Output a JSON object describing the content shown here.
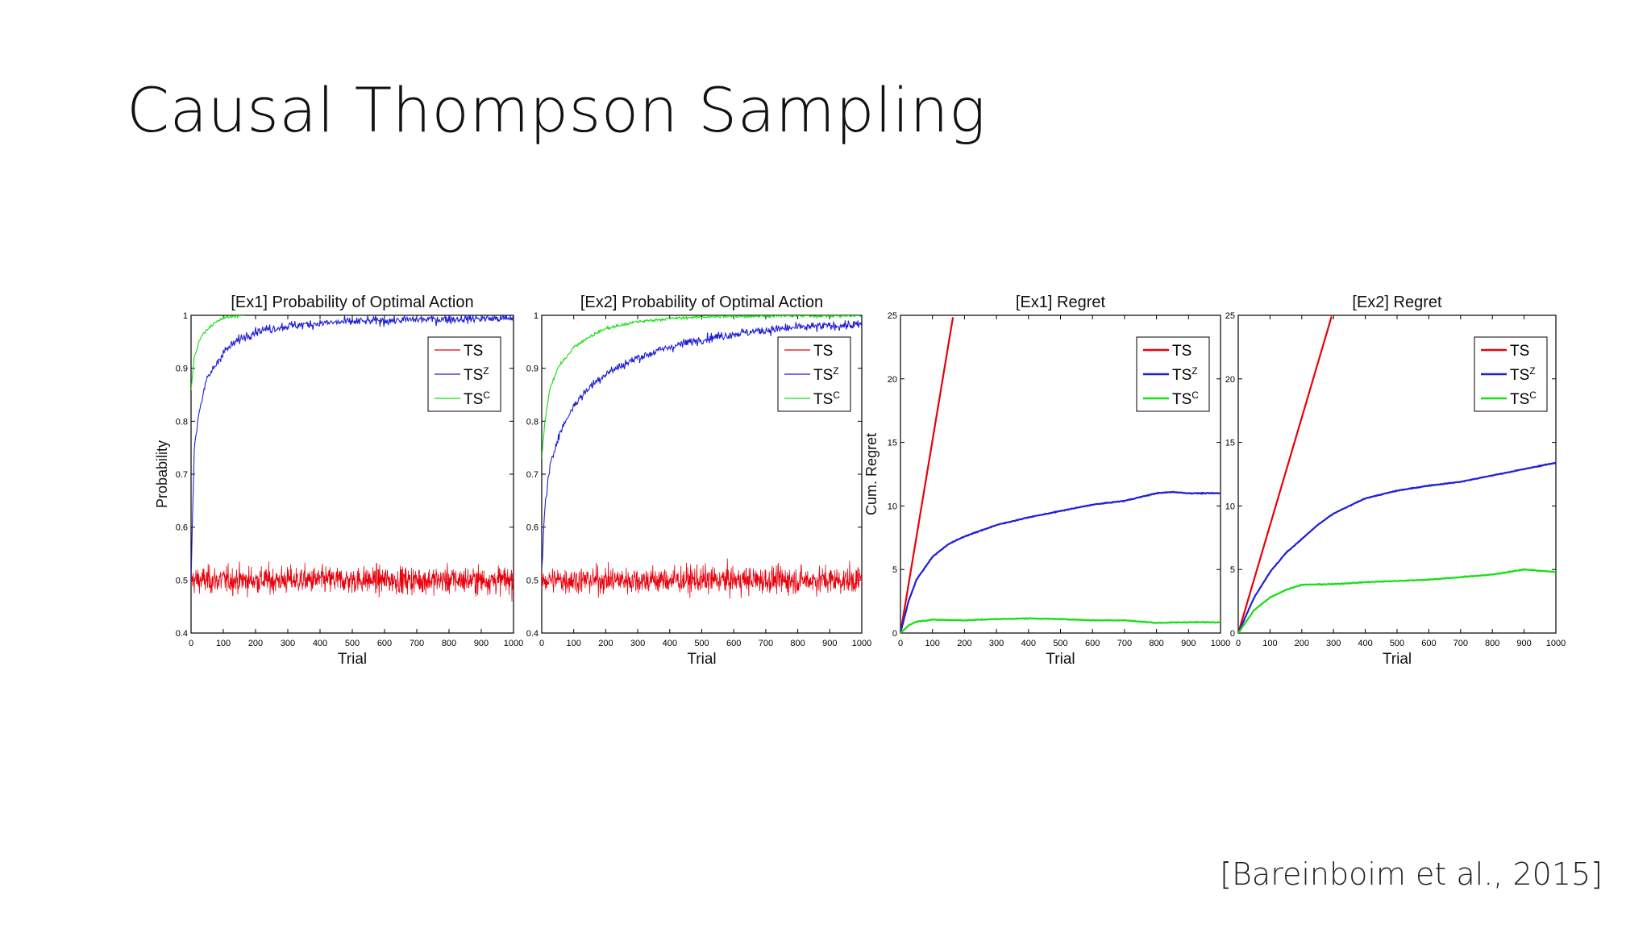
{
  "slide": {
    "title": "Causal Thompson Sampling",
    "citation": "[Bareinboim et al., 2015]"
  },
  "colors": {
    "TS": "#e8000b",
    "TSZ": "#1f1fd6",
    "TSC": "#11e011",
    "axes": "#000000",
    "background": "#ffffff"
  },
  "legend": [
    {
      "key": "TS",
      "base": "TS",
      "sup": ""
    },
    {
      "key": "TSZ",
      "base": "TS",
      "sup": "Z"
    },
    {
      "key": "TSC",
      "base": "TS",
      "sup": "C"
    }
  ],
  "chart_data": [
    {
      "type": "line",
      "title": "[Ex1] Probability of Optimal Action",
      "xlabel": "Trial",
      "ylabel": "Probability",
      "xlim": [
        0,
        1000
      ],
      "ylim": [
        0.4,
        1
      ],
      "xticks": [
        0,
        100,
        200,
        300,
        400,
        500,
        600,
        700,
        800,
        900,
        1000
      ],
      "yticks": [
        0.4,
        0.5,
        0.6,
        0.7,
        0.8,
        0.9,
        1
      ],
      "ytick_labels": [
        "0.4",
        "0.5",
        "0.6",
        "0.7",
        "0.8",
        "0.9",
        "1"
      ],
      "legend_position": "top-right",
      "series": [
        {
          "name": "TS",
          "key": "TS",
          "noisy": true,
          "x": [
            0,
            200,
            400,
            600,
            800,
            1000
          ],
          "y": [
            0.5,
            0.5,
            0.5,
            0.5,
            0.5,
            0.5
          ]
        },
        {
          "name": "TSZ",
          "key": "TSZ",
          "noisy": false,
          "x": [
            0,
            10,
            25,
            50,
            100,
            150,
            200,
            300,
            400,
            500,
            600,
            700,
            800,
            900,
            1000
          ],
          "y": [
            0.5,
            0.75,
            0.82,
            0.88,
            0.93,
            0.955,
            0.97,
            0.98,
            0.985,
            0.988,
            0.99,
            0.992,
            0.993,
            0.994,
            0.994
          ]
        },
        {
          "name": "TSC",
          "key": "TSC",
          "noisy": false,
          "x": [
            0,
            10,
            30,
            60,
            100,
            150,
            165
          ],
          "y": [
            0.86,
            0.92,
            0.96,
            0.98,
            0.995,
            1.0,
            1.0
          ]
        }
      ]
    },
    {
      "type": "line",
      "title": "[Ex2] Probability of Optimal Action",
      "xlabel": "Trial",
      "ylabel": "",
      "xlim": [
        0,
        1000
      ],
      "ylim": [
        0.4,
        1
      ],
      "xticks": [
        0,
        100,
        200,
        300,
        400,
        500,
        600,
        700,
        800,
        900,
        1000
      ],
      "yticks": [
        0.4,
        0.5,
        0.6,
        0.7,
        0.8,
        0.9,
        1
      ],
      "ytick_labels": [
        "0.4",
        "0.5",
        "0.6",
        "0.7",
        "0.8",
        "0.9",
        "1"
      ],
      "legend_position": "top-right",
      "series": [
        {
          "name": "TS",
          "key": "TS",
          "noisy": true,
          "x": [
            0,
            200,
            400,
            600,
            800,
            1000
          ],
          "y": [
            0.5,
            0.5,
            0.5,
            0.5,
            0.5,
            0.5
          ]
        },
        {
          "name": "TSZ",
          "key": "TSZ",
          "noisy": false,
          "x": [
            0,
            10,
            25,
            50,
            100,
            150,
            200,
            300,
            400,
            500,
            600,
            700,
            800,
            900,
            1000
          ],
          "y": [
            0.52,
            0.64,
            0.71,
            0.77,
            0.83,
            0.865,
            0.89,
            0.92,
            0.94,
            0.955,
            0.965,
            0.972,
            0.977,
            0.98,
            0.982
          ]
        },
        {
          "name": "TSC",
          "key": "TSC",
          "noisy": false,
          "x": [
            0,
            10,
            25,
            50,
            100,
            150,
            200,
            300,
            400,
            500,
            600,
            700,
            800,
            900,
            1000
          ],
          "y": [
            0.73,
            0.8,
            0.86,
            0.9,
            0.94,
            0.96,
            0.975,
            0.988,
            0.994,
            0.997,
            0.998,
            0.999,
            0.999,
            0.999,
            0.999
          ]
        }
      ]
    },
    {
      "type": "line",
      "title": "[Ex1] Regret",
      "xlabel": "Trial",
      "ylabel": "Cum. Regret",
      "xlim": [
        0,
        1000
      ],
      "ylim": [
        0,
        25
      ],
      "xticks": [
        0,
        100,
        200,
        300,
        400,
        500,
        600,
        700,
        800,
        900,
        1000
      ],
      "yticks": [
        0,
        5,
        10,
        15,
        20,
        25
      ],
      "ytick_labels": [
        "0",
        "5",
        "10",
        "15",
        "20",
        "25"
      ],
      "legend_position": "top-right",
      "series": [
        {
          "name": "TS",
          "key": "TS",
          "noisy": false,
          "x": [
            0,
            165
          ],
          "y": [
            0,
            25
          ]
        },
        {
          "name": "TSZ",
          "key": "TSZ",
          "noisy": false,
          "x": [
            0,
            25,
            50,
            100,
            150,
            200,
            300,
            400,
            500,
            600,
            700,
            800,
            850,
            900,
            1000
          ],
          "y": [
            0,
            2.5,
            4.2,
            6.0,
            7.0,
            7.6,
            8.5,
            9.1,
            9.6,
            10.1,
            10.4,
            11.0,
            11.1,
            11.0,
            11.0
          ]
        },
        {
          "name": "TSC",
          "key": "TSC",
          "noisy": false,
          "x": [
            0,
            25,
            50,
            100,
            200,
            300,
            400,
            500,
            600,
            700,
            800,
            900,
            1000
          ],
          "y": [
            0,
            0.6,
            0.9,
            1.05,
            1.0,
            1.1,
            1.15,
            1.1,
            1.0,
            1.0,
            0.8,
            0.85,
            0.85
          ]
        }
      ]
    },
    {
      "type": "line",
      "title": "[Ex2] Regret",
      "xlabel": "Trial",
      "ylabel": "",
      "xlim": [
        0,
        1000
      ],
      "ylim": [
        0,
        25
      ],
      "xticks": [
        0,
        100,
        200,
        300,
        400,
        500,
        600,
        700,
        800,
        900,
        1000
      ],
      "yticks": [
        0,
        5,
        10,
        15,
        20,
        25
      ],
      "ytick_labels": [
        "0",
        "5",
        "10",
        "15",
        "20",
        "25"
      ],
      "legend_position": "top-right",
      "series": [
        {
          "name": "TS",
          "key": "TS",
          "noisy": false,
          "x": [
            0,
            295
          ],
          "y": [
            0,
            25
          ]
        },
        {
          "name": "TSZ",
          "key": "TSZ",
          "noisy": false,
          "x": [
            0,
            50,
            100,
            150,
            200,
            250,
            300,
            400,
            500,
            600,
            700,
            800,
            900,
            1000
          ],
          "y": [
            0,
            2.8,
            4.8,
            6.3,
            7.4,
            8.5,
            9.4,
            10.6,
            11.2,
            11.6,
            11.9,
            12.4,
            12.9,
            13.4
          ]
        },
        {
          "name": "TSC",
          "key": "TSC",
          "noisy": false,
          "x": [
            0,
            50,
            100,
            150,
            200,
            300,
            400,
            500,
            600,
            700,
            800,
            900,
            1000
          ],
          "y": [
            0,
            1.8,
            2.8,
            3.4,
            3.8,
            3.85,
            4.0,
            4.1,
            4.2,
            4.4,
            4.6,
            5.0,
            4.8
          ]
        }
      ]
    }
  ]
}
